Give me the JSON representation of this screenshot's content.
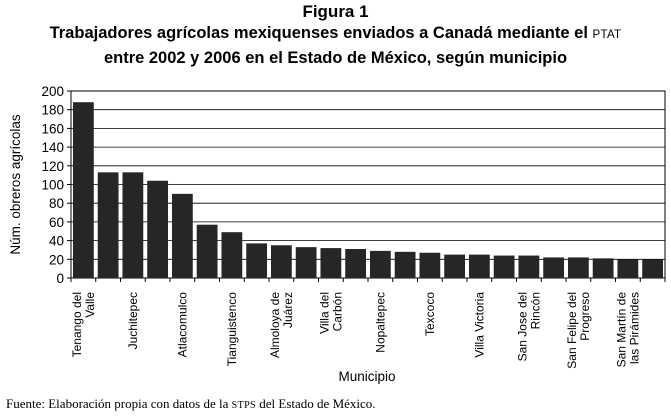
{
  "figure_label": "Figura 1",
  "title_line1": "Trabajadores agrícolas mexiquenses enviados a Canadá mediante el",
  "title_acronym": "PTAT",
  "title_line2": "entre 2002 y 2006 en el Estado de México, según municipio",
  "source_prefix": "Fuente: Elaboración propia con datos de la",
  "source_acronym": "STPS",
  "source_suffix": "del Estado de México.",
  "chart_data": {
    "type": "bar",
    "xlabel": "Municipio",
    "ylabel": "Núm. obreros agrícolas",
    "ylim": [
      0,
      200
    ],
    "yticks": [
      0,
      20,
      40,
      60,
      80,
      100,
      120,
      140,
      160,
      180,
      200
    ],
    "grid": true,
    "bar_color": "#262626",
    "values": [
      188,
      113,
      113,
      104,
      90,
      57,
      49,
      37,
      35,
      33,
      32,
      31,
      29,
      28,
      27,
      25,
      25,
      24,
      24,
      22,
      22,
      21,
      20,
      20
    ],
    "tick_labels": [
      {
        "index": 0,
        "lines": [
          "Tenango del",
          "Valle"
        ]
      },
      {
        "index": 2,
        "lines": [
          "Juchitepec"
        ]
      },
      {
        "index": 4,
        "lines": [
          "Atlacomulco"
        ]
      },
      {
        "index": 6,
        "lines": [
          "Tianguistenco"
        ]
      },
      {
        "index": 8,
        "lines": [
          "Almoloya de",
          "Juárez"
        ]
      },
      {
        "index": 10,
        "lines": [
          "Villa del",
          "Carbón"
        ]
      },
      {
        "index": 12,
        "lines": [
          "Nopaltepec"
        ]
      },
      {
        "index": 14,
        "lines": [
          "Texcoco"
        ]
      },
      {
        "index": 16,
        "lines": [
          "Villa Victoria"
        ]
      },
      {
        "index": 18,
        "lines": [
          "San Jose del",
          "Rincón"
        ]
      },
      {
        "index": 20,
        "lines": [
          "San Felipe del",
          "Progreso"
        ]
      },
      {
        "index": 22,
        "lines": [
          "San Martín de",
          "las Pirámides"
        ]
      }
    ]
  }
}
